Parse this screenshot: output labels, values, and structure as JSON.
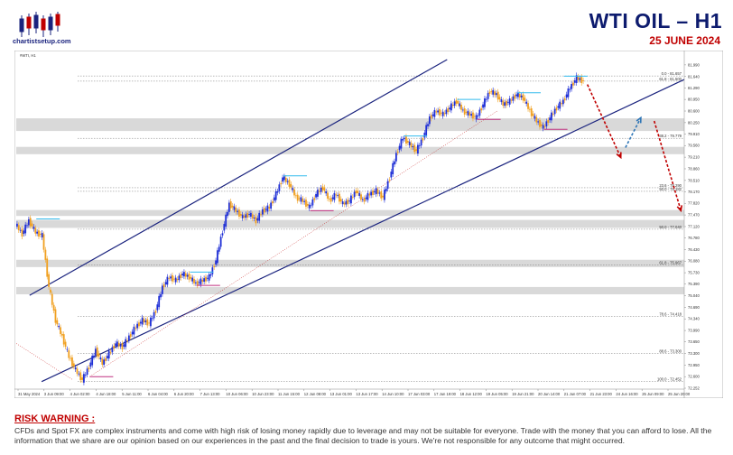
{
  "brand": {
    "logo_text": "chartistsetup.com"
  },
  "header": {
    "title": "WTI OIL  –  H1",
    "date": "25 JUNE 2024"
  },
  "chart_data": {
    "type": "candlestick",
    "symbol_label": "#WTI, H1",
    "y_axis": {
      "ylim": [
        72.252,
        82.15
      ],
      "ticks": [
        "81.990",
        "81.640",
        "81.290",
        "80.950",
        "80.600",
        "80.250",
        "79.910",
        "79.560",
        "79.210",
        "78.860",
        "78.510",
        "78.170",
        "77.820",
        "77.470",
        "77.120",
        "76.780",
        "76.430",
        "76.080",
        "75.730",
        "75.390",
        "75.040",
        "74.690",
        "74.340",
        "73.990",
        "73.650",
        "73.300",
        "72.950",
        "72.600",
        "72.252"
      ]
    },
    "x_axis": {
      "ticks": [
        "31 May 2024",
        "3 Jun 09:00",
        "4 Jun 02:00",
        "4 Jun 18:00",
        "5 Jun 11:00",
        "6 Jun 04:00",
        "6 Jun 20:00",
        "7 Jun 13:00",
        "10 Jun 06:00",
        "10 Jun 23:00",
        "11 Jun 15:00",
        "12 Jun 08:00",
        "13 Jun 01:00",
        "13 Jun 17:00",
        "14 Jun 10:00",
        "17 Jun 03:00",
        "17 Jun 19:00",
        "18 Jun 12:00",
        "19 Jun 05:00",
        "19 Jun 21:00",
        "20 Jun 14:00",
        "21 Jun 07:00",
        "21 Jun 23:00",
        "24 Jun 16:00",
        "25 Jun 09:00",
        "25 Jun 20:00"
      ]
    },
    "fib_levels": [
      {
        "label": "0.0 - 81.657",
        "value": 81.657
      },
      {
        "label": "61.8 - 81.500",
        "value": 81.5
      },
      {
        "label": "38.2 - 79.779",
        "value": 79.779
      },
      {
        "label": "23.6 - 78.290",
        "value": 78.29
      },
      {
        "label": "50.0 - 78.182",
        "value": 78.182
      },
      {
        "label": "50.0 - 77.040",
        "value": 77.04
      },
      {
        "label": "61.8 - 75.967",
        "value": 75.967
      },
      {
        "label": "78.6 - 74.418",
        "value": 74.418
      },
      {
        "label": "88.6 - 73.300",
        "value": 73.3
      },
      {
        "label": "100.0 - 72.452",
        "value": 72.452
      }
    ],
    "zones": [
      [
        80.38,
        80.0
      ],
      [
        79.52,
        79.3
      ],
      [
        77.62,
        77.44
      ],
      [
        77.32,
        77.08
      ],
      [
        76.12,
        75.9
      ],
      [
        75.3,
        75.08
      ]
    ],
    "channel": {
      "upper": [
        [
          0.02,
          75.05
        ],
        [
          0.645,
          82.15
        ]
      ],
      "lower": [
        [
          0.038,
          72.45
        ],
        [
          1.0,
          81.55
        ]
      ]
    },
    "price_path": [
      [
        0.0,
        77.2
      ],
      [
        0.01,
        76.9
      ],
      [
        0.02,
        77.3
      ],
      [
        0.03,
        76.95
      ],
      [
        0.04,
        76.85
      ],
      [
        0.05,
        75.3
      ],
      [
        0.06,
        74.3
      ],
      [
        0.07,
        73.8
      ],
      [
        0.08,
        73.2
      ],
      [
        0.09,
        72.8
      ],
      [
        0.1,
        72.5
      ],
      [
        0.11,
        72.9
      ],
      [
        0.12,
        73.4
      ],
      [
        0.13,
        73.0
      ],
      [
        0.14,
        73.3
      ],
      [
        0.15,
        73.6
      ],
      [
        0.16,
        73.5
      ],
      [
        0.17,
        73.8
      ],
      [
        0.18,
        74.1
      ],
      [
        0.19,
        74.3
      ],
      [
        0.2,
        74.2
      ],
      [
        0.21,
        74.6
      ],
      [
        0.22,
        75.3
      ],
      [
        0.23,
        75.6
      ],
      [
        0.24,
        75.5
      ],
      [
        0.25,
        75.7
      ],
      [
        0.26,
        75.6
      ],
      [
        0.27,
        75.4
      ],
      [
        0.28,
        75.5
      ],
      [
        0.29,
        75.6
      ],
      [
        0.3,
        76.1
      ],
      [
        0.31,
        77.0
      ],
      [
        0.32,
        77.8
      ],
      [
        0.33,
        77.6
      ],
      [
        0.34,
        77.4
      ],
      [
        0.35,
        77.5
      ],
      [
        0.36,
        77.3
      ],
      [
        0.37,
        77.6
      ],
      [
        0.38,
        77.7
      ],
      [
        0.39,
        78.1
      ],
      [
        0.4,
        78.6
      ],
      [
        0.41,
        78.4
      ],
      [
        0.42,
        78.0
      ],
      [
        0.43,
        77.9
      ],
      [
        0.44,
        77.7
      ],
      [
        0.45,
        78.1
      ],
      [
        0.46,
        78.3
      ],
      [
        0.47,
        77.9
      ],
      [
        0.48,
        78.1
      ],
      [
        0.49,
        77.8
      ],
      [
        0.5,
        77.9
      ],
      [
        0.51,
        78.2
      ],
      [
        0.52,
        77.9
      ],
      [
        0.53,
        78.1
      ],
      [
        0.54,
        78.2
      ],
      [
        0.55,
        78.0
      ],
      [
        0.56,
        78.6
      ],
      [
        0.57,
        79.3
      ],
      [
        0.58,
        79.8
      ],
      [
        0.59,
        79.6
      ],
      [
        0.6,
        79.4
      ],
      [
        0.61,
        79.8
      ],
      [
        0.62,
        80.4
      ],
      [
        0.63,
        80.6
      ],
      [
        0.64,
        80.5
      ],
      [
        0.65,
        80.7
      ],
      [
        0.66,
        80.9
      ],
      [
        0.67,
        80.6
      ],
      [
        0.68,
        80.5
      ],
      [
        0.69,
        80.4
      ],
      [
        0.7,
        80.8
      ],
      [
        0.71,
        81.2
      ],
      [
        0.72,
        81.1
      ],
      [
        0.73,
        80.8
      ],
      [
        0.74,
        80.9
      ],
      [
        0.75,
        81.1
      ],
      [
        0.76,
        81.0
      ],
      [
        0.77,
        80.6
      ],
      [
        0.78,
        80.3
      ],
      [
        0.79,
        80.1
      ],
      [
        0.8,
        80.4
      ],
      [
        0.81,
        80.7
      ],
      [
        0.82,
        80.9
      ],
      [
        0.83,
        81.3
      ],
      [
        0.84,
        81.6
      ],
      [
        0.85,
        81.5
      ]
    ],
    "forecast_arrows": [
      {
        "color": "#c00000",
        "from": [
          0.855,
          81.4
        ],
        "to": [
          0.905,
          79.2
        ]
      },
      {
        "color": "#2e75b6",
        "from": [
          0.912,
          79.5
        ],
        "to": [
          0.935,
          80.4
        ]
      },
      {
        "color": "#c00000",
        "from": [
          0.955,
          80.3
        ],
        "to": [
          0.995,
          77.6
        ]
      }
    ]
  },
  "risk": {
    "title": "RISK WARNING :",
    "text": "CFDs and Spot FX are complex instruments and come with high risk of losing money rapidly due to leverage and may not be suitable for everyone. Trade with the money that you can afford to lose. All the information that we share are our opinion based on our experiences in the past and the final decision to trade is yours. We're not responsible for any outcome that might occurred."
  }
}
